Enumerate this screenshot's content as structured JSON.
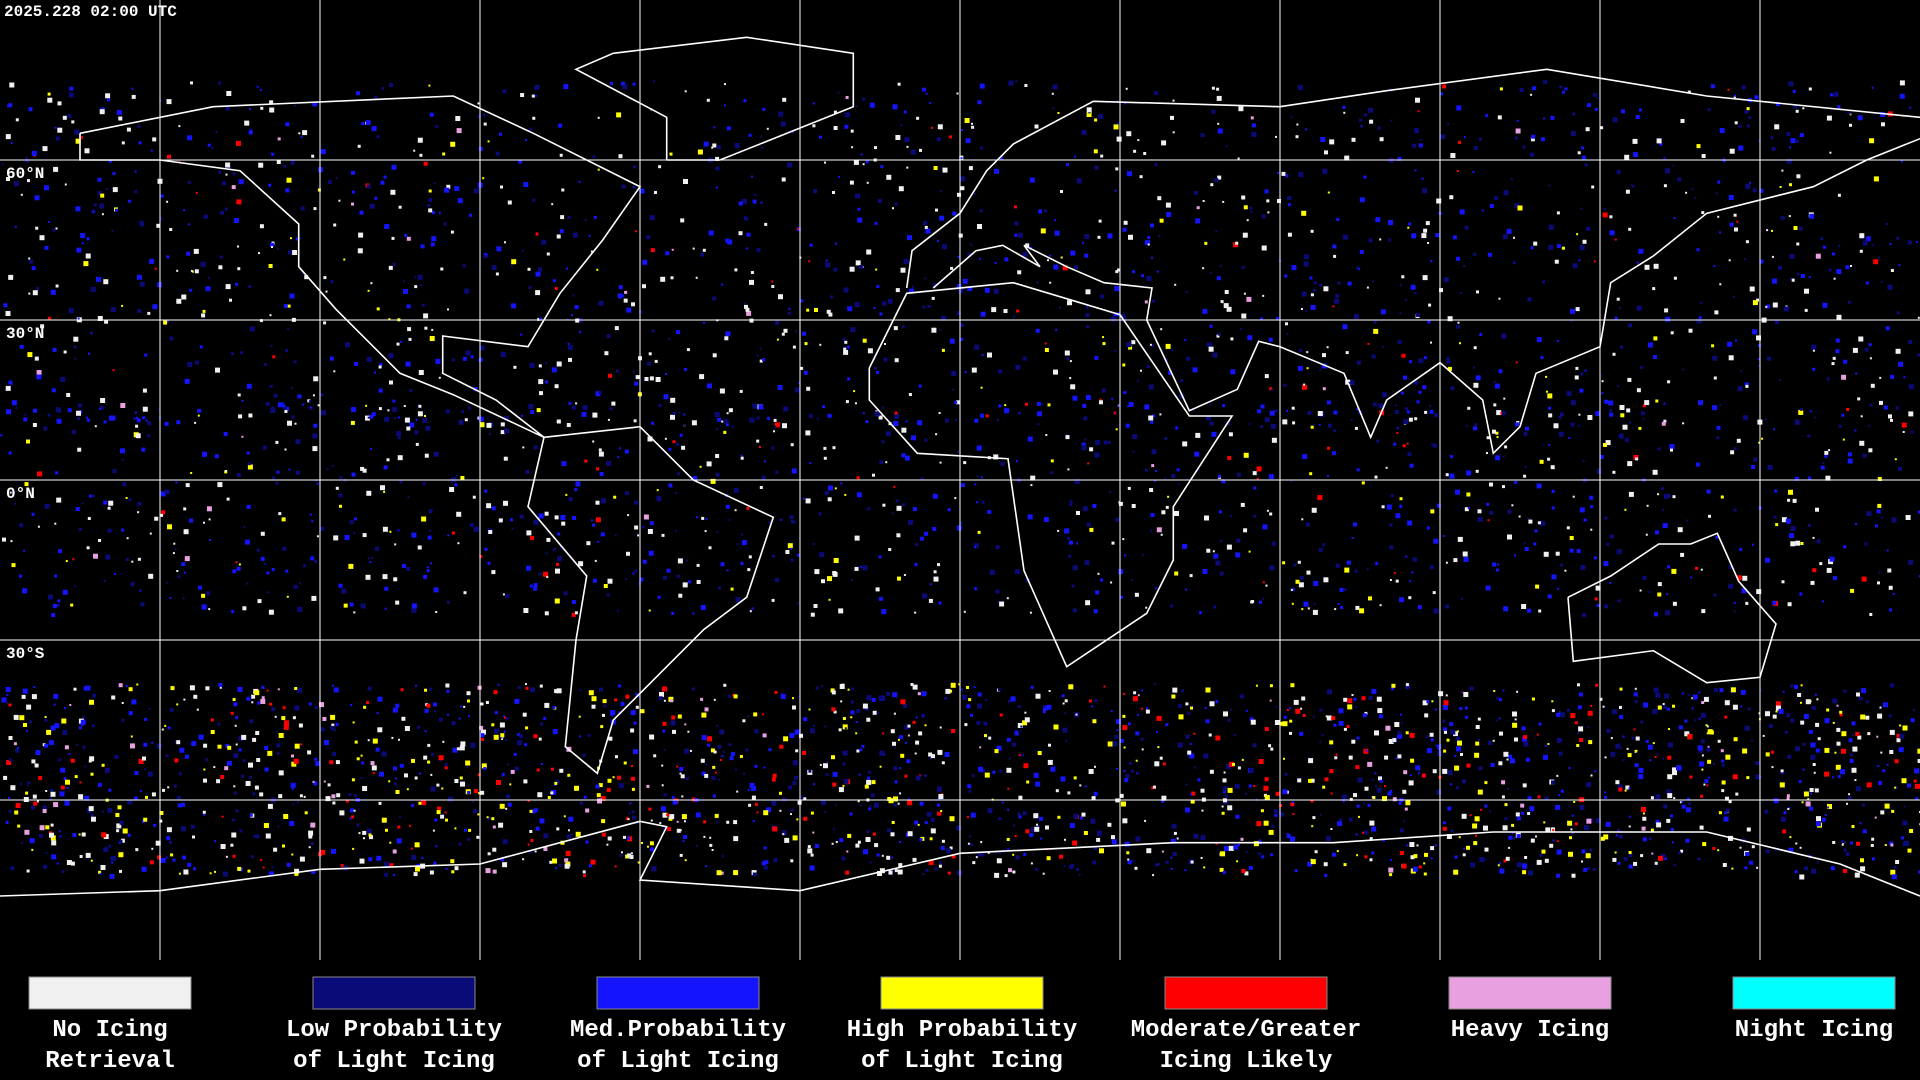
{
  "timestamp": "2025.228 02:00 UTC",
  "map": {
    "lat_labels": [
      "60°N",
      "30°N",
      "0°N",
      "30°S"
    ]
  },
  "legend": [
    {
      "lines": [
        "No Icing",
        "Retrieval"
      ],
      "color": "#f0f0f0"
    },
    {
      "lines": [
        "Low Probability",
        "of Light Icing"
      ],
      "color": "#0a0a78"
    },
    {
      "lines": [
        "Med.Probability",
        "of Light Icing"
      ],
      "color": "#1414ff"
    },
    {
      "lines": [
        "High Probability",
        "of Light Icing"
      ],
      "color": "#ffff00"
    },
    {
      "lines": [
        "Moderate/Greater",
        "Icing Likely"
      ],
      "color": "#ff0000"
    },
    {
      "lines": [
        "Heavy Icing"
      ],
      "color": "#e8a0e0"
    },
    {
      "lines": [
        "Night Icing"
      ],
      "color": "#00ffff"
    }
  ]
}
